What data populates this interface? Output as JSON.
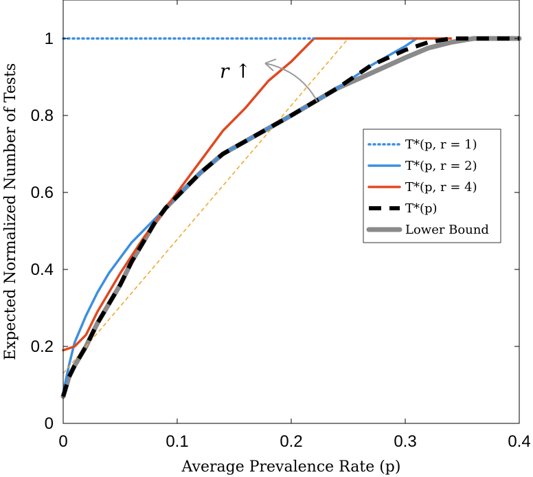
{
  "chart_data": {
    "type": "line",
    "title": "",
    "xlabel": "Average Prevalence Rate (p)",
    "ylabel": "Expected Normalized Number of Tests",
    "xlim": [
      0,
      0.4
    ],
    "ylim": [
      0,
      1.1
    ],
    "xticks": [
      "0",
      "0.1",
      "0.2",
      "0.3",
      "0.4"
    ],
    "yticks": [
      "0",
      "0.2",
      "0.4",
      "0.6",
      "0.8",
      "1"
    ],
    "grid": false,
    "legend_position": "right",
    "annotation": "r ↑",
    "series": [
      {
        "name": "T*(p, r = 1)",
        "legend_label": "T*(p, r = 1)",
        "color": "#3d8fe0",
        "style": "dotted",
        "x": [
          0,
          0.22
        ],
        "y": [
          1,
          1
        ]
      },
      {
        "name": "T*(p, r = 2)",
        "legend_label": "T*(p, r = 2)",
        "color": "#3d8fe0",
        "style": "solid",
        "x": [
          0,
          0.005,
          0.01,
          0.02,
          0.03,
          0.04,
          0.05,
          0.06,
          0.07,
          0.08,
          0.09,
          0.1,
          0.12,
          0.14,
          0.17,
          0.2,
          0.24,
          0.27,
          0.3,
          0.31
        ],
        "y": [
          0.08,
          0.15,
          0.21,
          0.28,
          0.34,
          0.39,
          0.43,
          0.47,
          0.5,
          0.53,
          0.56,
          0.59,
          0.65,
          0.7,
          0.75,
          0.8,
          0.87,
          0.93,
          0.98,
          1.0
        ]
      },
      {
        "name": "T*(p, r = 4)",
        "legend_label": "T*(p, r = 4)",
        "color": "#e0481f",
        "style": "solid",
        "x": [
          0,
          0.01,
          0.02,
          0.03,
          0.05,
          0.07,
          0.09,
          0.1,
          0.12,
          0.14,
          0.16,
          0.18,
          0.2,
          0.22,
          0.34
        ],
        "y": [
          0.19,
          0.2,
          0.23,
          0.29,
          0.39,
          0.48,
          0.56,
          0.6,
          0.68,
          0.76,
          0.82,
          0.89,
          0.94,
          1.0,
          1.0
        ]
      },
      {
        "name": "T*(p)",
        "legend_label": "T*(p)",
        "color": "#000000",
        "style": "dashed",
        "x": [
          0,
          0.005,
          0.01,
          0.02,
          0.03,
          0.04,
          0.05,
          0.06,
          0.07,
          0.08,
          0.09,
          0.1,
          0.12,
          0.14,
          0.17,
          0.2,
          0.24,
          0.27,
          0.3,
          0.32,
          0.34,
          0.36,
          0.38,
          0.4
        ],
        "y": [
          0.07,
          0.12,
          0.15,
          0.2,
          0.26,
          0.31,
          0.36,
          0.42,
          0.47,
          0.52,
          0.56,
          0.59,
          0.65,
          0.7,
          0.75,
          0.8,
          0.87,
          0.93,
          0.97,
          0.99,
          1.0,
          1.0,
          1.0,
          1.0
        ]
      },
      {
        "name": "Lower Bound",
        "legend_label": "Lower Bound",
        "color": "#8a8a8a",
        "style": "solid-thick",
        "x": [
          0,
          0.005,
          0.01,
          0.02,
          0.03,
          0.04,
          0.05,
          0.06,
          0.07,
          0.08,
          0.09,
          0.1,
          0.12,
          0.14,
          0.17,
          0.2,
          0.24,
          0.27,
          0.3,
          0.32,
          0.34,
          0.36,
          0.38,
          0.4
        ],
        "y": [
          0.07,
          0.12,
          0.15,
          0.2,
          0.26,
          0.31,
          0.36,
          0.42,
          0.47,
          0.52,
          0.56,
          0.59,
          0.65,
          0.7,
          0.75,
          0.8,
          0.87,
          0.91,
          0.95,
          0.975,
          0.99,
          1.0,
          1.0,
          1.0
        ]
      },
      {
        "name": "",
        "color": "#f0a830",
        "style": "thin-dashed",
        "x": [
          0,
          0.25
        ],
        "y": [
          0.13,
          1.0
        ]
      }
    ]
  }
}
